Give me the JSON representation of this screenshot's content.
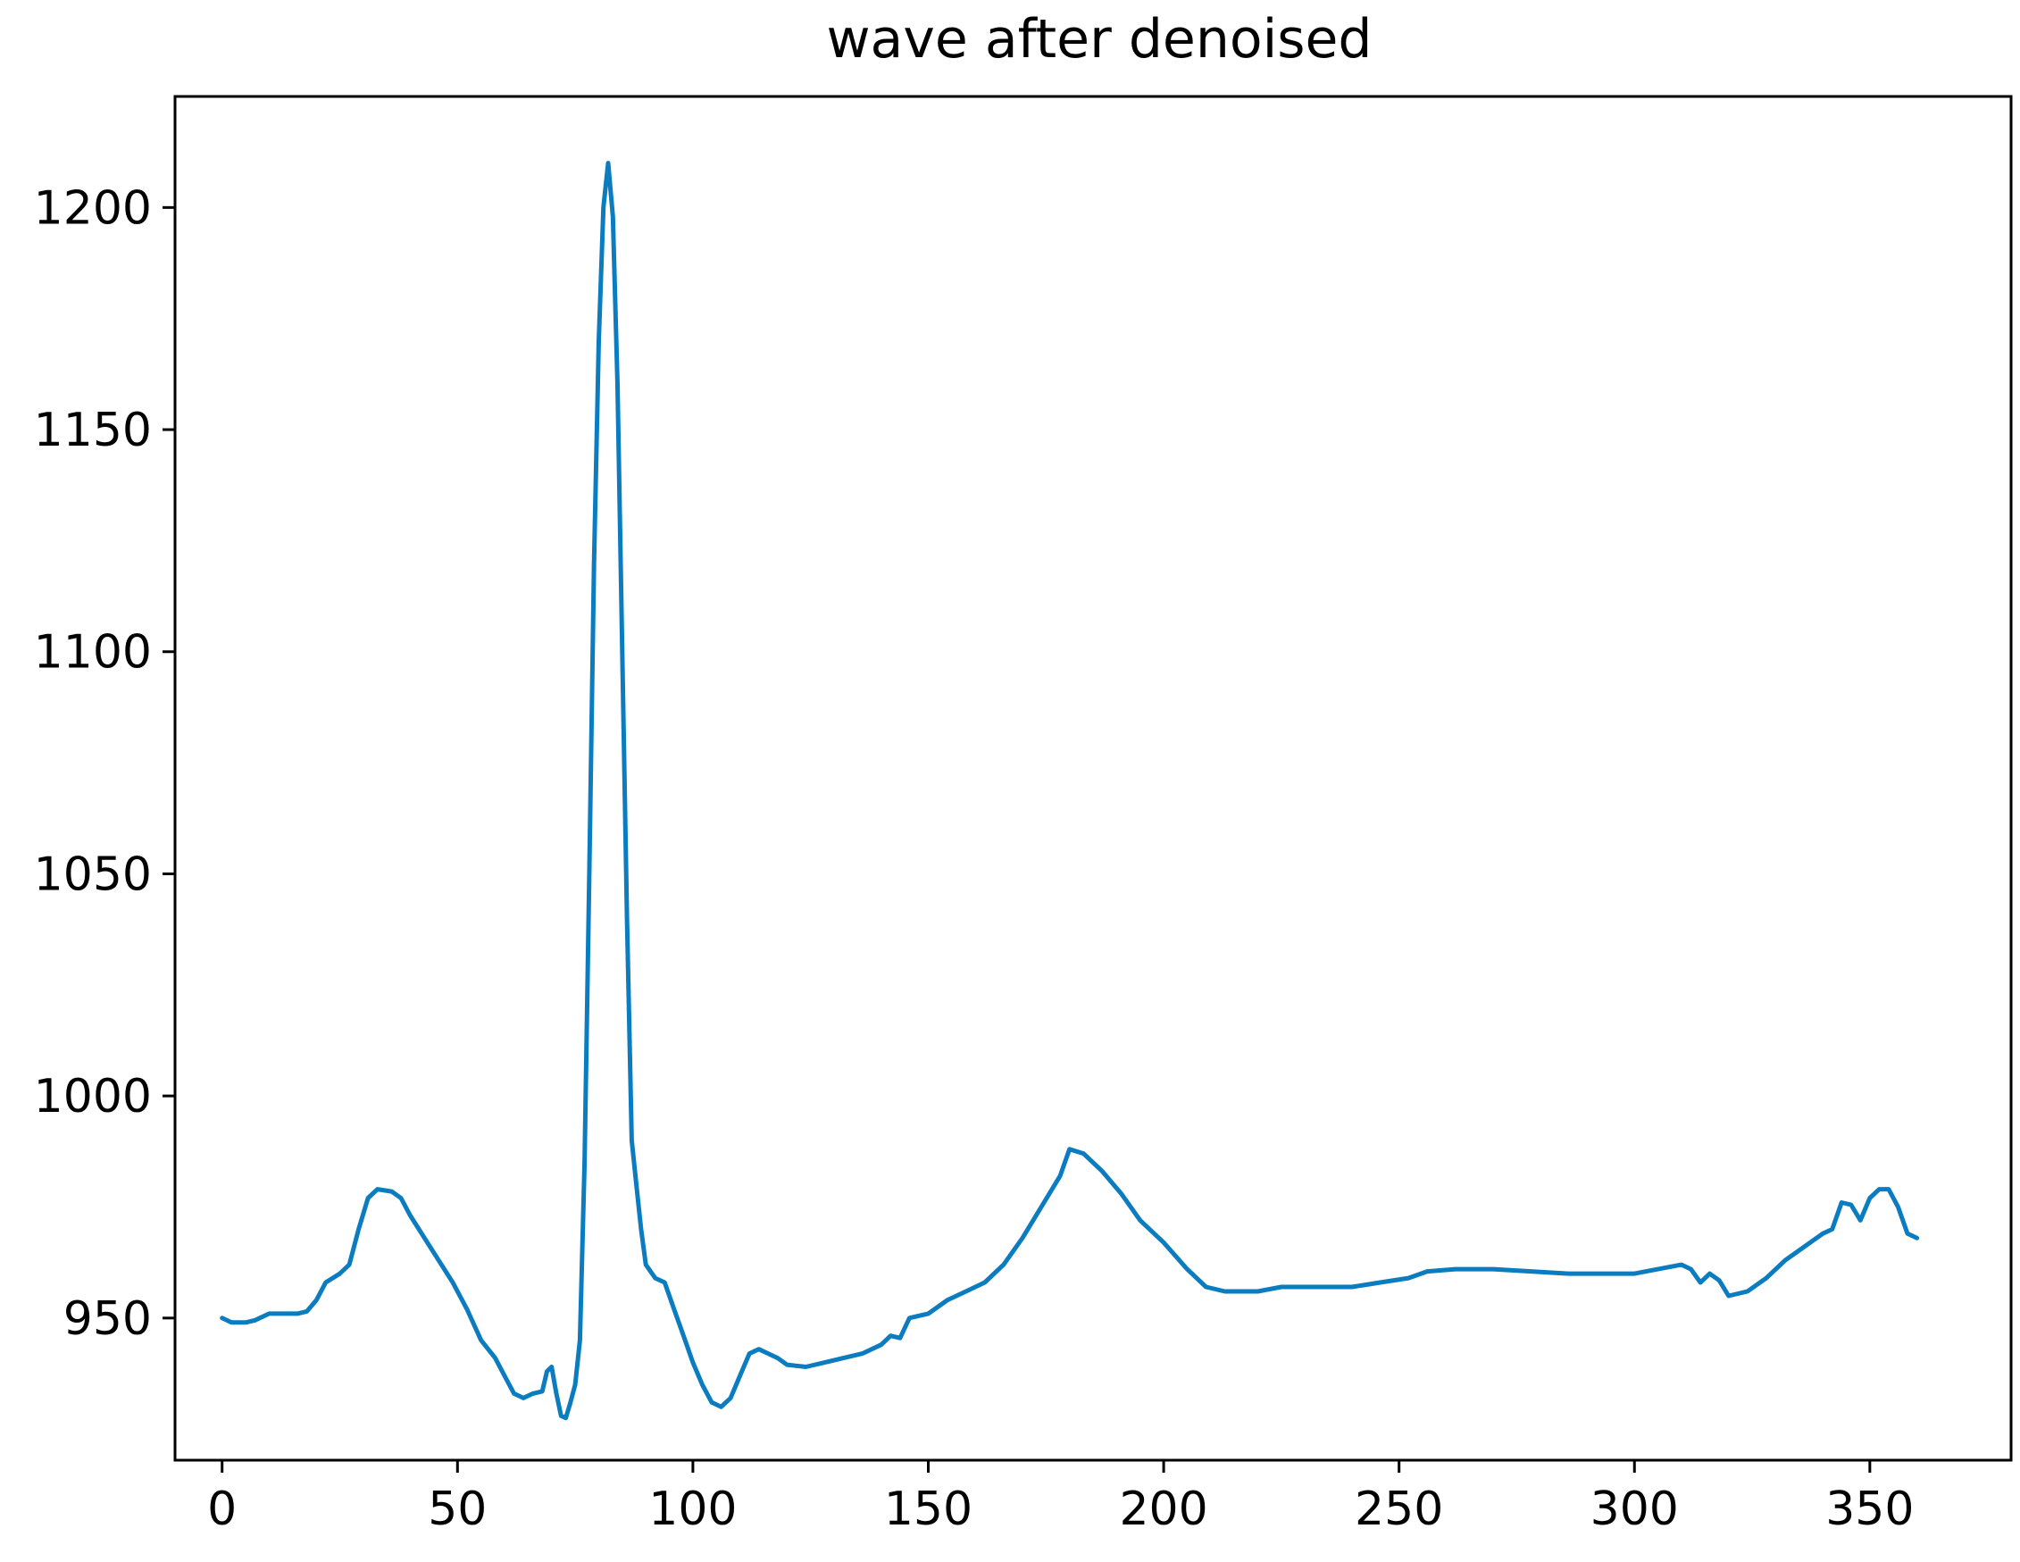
{
  "chart_data": {
    "type": "line",
    "title": "wave after denoised",
    "xlabel": "",
    "ylabel": "",
    "xlim": [
      -10,
      380
    ],
    "ylim": [
      918,
      1225
    ],
    "xticks": [
      0,
      50,
      100,
      150,
      200,
      250,
      300,
      350
    ],
    "yticks": [
      950,
      1000,
      1050,
      1100,
      1150,
      1200
    ],
    "grid": false,
    "line_color": "#0a7cbf",
    "series": [
      {
        "name": "",
        "points": [
          [
            0,
            950
          ],
          [
            2,
            949
          ],
          [
            5,
            949
          ],
          [
            7,
            949.5
          ],
          [
            10,
            951
          ],
          [
            13,
            951
          ],
          [
            16,
            951
          ],
          [
            18,
            951.5
          ],
          [
            20,
            954
          ],
          [
            22,
            958
          ],
          [
            25,
            960
          ],
          [
            27,
            962
          ],
          [
            29,
            970
          ],
          [
            31,
            977
          ],
          [
            33,
            979
          ],
          [
            36,
            978.5
          ],
          [
            38,
            977
          ],
          [
            40,
            973
          ],
          [
            43,
            968
          ],
          [
            46,
            963
          ],
          [
            49,
            958
          ],
          [
            52,
            952
          ],
          [
            55,
            945
          ],
          [
            58,
            941
          ],
          [
            60,
            937
          ],
          [
            62,
            933
          ],
          [
            64,
            932
          ],
          [
            66,
            933
          ],
          [
            68,
            933.5
          ],
          [
            69,
            938
          ],
          [
            70,
            939
          ],
          [
            71,
            933
          ],
          [
            72,
            928
          ],
          [
            73,
            927.5
          ],
          [
            74,
            931
          ],
          [
            75,
            935
          ],
          [
            76,
            945
          ],
          [
            77,
            985
          ],
          [
            78,
            1050
          ],
          [
            79,
            1120
          ],
          [
            80,
            1170
          ],
          [
            81,
            1200
          ],
          [
            82,
            1210
          ],
          [
            83,
            1198
          ],
          [
            84,
            1160
          ],
          [
            85,
            1100
          ],
          [
            86,
            1040
          ],
          [
            87,
            990
          ],
          [
            88,
            980
          ],
          [
            89,
            970
          ],
          [
            90,
            962
          ],
          [
            92,
            959
          ],
          [
            94,
            958
          ],
          [
            96,
            952
          ],
          [
            98,
            946
          ],
          [
            100,
            940
          ],
          [
            102,
            935
          ],
          [
            104,
            931
          ],
          [
            106,
            930
          ],
          [
            108,
            932
          ],
          [
            110,
            937
          ],
          [
            112,
            942
          ],
          [
            114,
            943
          ],
          [
            116,
            942
          ],
          [
            118,
            941
          ],
          [
            120,
            939.5
          ],
          [
            124,
            939
          ],
          [
            128,
            940
          ],
          [
            132,
            941
          ],
          [
            136,
            942
          ],
          [
            140,
            944
          ],
          [
            142,
            946
          ],
          [
            144,
            945.5
          ],
          [
            146,
            950
          ],
          [
            150,
            951
          ],
          [
            154,
            954
          ],
          [
            158,
            956
          ],
          [
            162,
            958
          ],
          [
            166,
            962
          ],
          [
            170,
            968
          ],
          [
            174,
            975
          ],
          [
            178,
            982
          ],
          [
            180,
            988
          ],
          [
            183,
            987
          ],
          [
            187,
            983
          ],
          [
            191,
            978
          ],
          [
            195,
            972
          ],
          [
            200,
            967
          ],
          [
            205,
            961
          ],
          [
            209,
            957
          ],
          [
            213,
            956
          ],
          [
            220,
            956
          ],
          [
            225,
            957
          ],
          [
            232,
            957
          ],
          [
            240,
            957
          ],
          [
            246,
            958
          ],
          [
            252,
            959
          ],
          [
            256,
            960.5
          ],
          [
            262,
            961
          ],
          [
            270,
            961
          ],
          [
            278,
            960.5
          ],
          [
            286,
            960
          ],
          [
            294,
            960
          ],
          [
            300,
            960
          ],
          [
            305,
            961
          ],
          [
            310,
            962
          ],
          [
            312,
            961
          ],
          [
            314,
            958
          ],
          [
            316,
            960
          ],
          [
            318,
            958.5
          ],
          [
            320,
            955
          ],
          [
            322,
            955.5
          ],
          [
            324,
            956
          ],
          [
            328,
            959
          ],
          [
            332,
            963
          ],
          [
            336,
            966
          ],
          [
            340,
            969
          ],
          [
            342,
            970
          ],
          [
            344,
            976
          ],
          [
            346,
            975.5
          ],
          [
            348,
            972
          ],
          [
            350,
            977
          ],
          [
            352,
            979
          ],
          [
            354,
            979
          ],
          [
            356,
            975
          ],
          [
            358,
            969
          ],
          [
            360,
            968
          ]
        ]
      }
    ]
  }
}
